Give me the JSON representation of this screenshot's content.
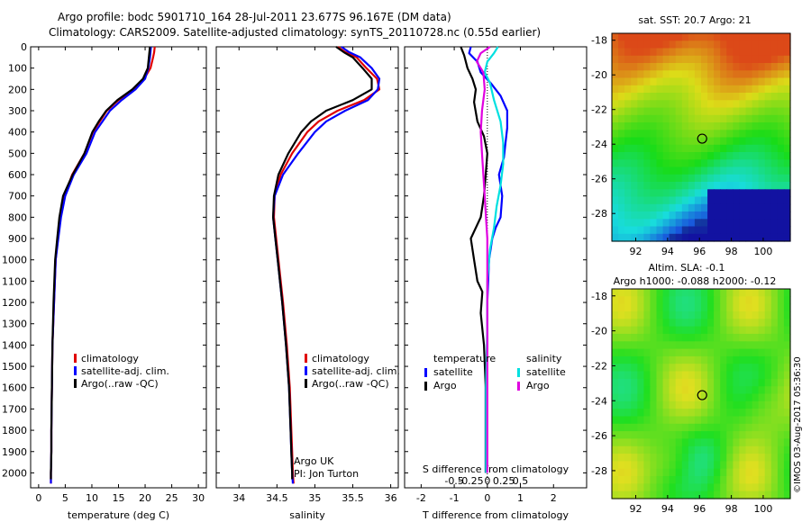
{
  "header": {
    "line1": "Argo profile: bodc 5901710_164 28-Jul-2011 23.677S 96.167E (DM data)",
    "line2": "Climatology: CARS2009. Satellite-adjusted climatology: synTS_20110728.nc (0.55d earlier)"
  },
  "credit": "©IMOS 03-Aug-2017 05:36:30",
  "colors": {
    "climatology": "#e00000",
    "satellite": "#0000ff",
    "argo": "#000000",
    "salinity_satellite": "#00e0e0",
    "salinity_argo": "#e000e0"
  },
  "depth_axis": {
    "ticks": [
      0,
      100,
      200,
      300,
      400,
      500,
      600,
      700,
      800,
      900,
      1000,
      1100,
      1200,
      1300,
      1400,
      1500,
      1600,
      1700,
      1800,
      1900,
      2000
    ],
    "range": [
      0,
      2070
    ],
    "reversed": true
  },
  "chart_data": [
    {
      "type": "line",
      "panel": "temperature",
      "xlabel": "temperature (deg C)",
      "xlim": [
        -1.5,
        31.5
      ],
      "xticks": [
        0,
        5,
        10,
        15,
        20,
        25,
        30
      ],
      "ylim": [
        0,
        2070
      ],
      "legend": [
        "climatology",
        "satellite-adj. clim.",
        "Argo(..raw -QC)"
      ],
      "series": [
        {
          "name": "climatology",
          "color": "#e00000",
          "x": [
            21.8,
            21.7,
            21.5,
            21.0,
            19.8,
            17.8,
            15.0,
            12.8,
            11.5,
            10.2,
            8.6,
            6.3,
            4.9,
            4.1,
            3.6,
            3.2,
            2.9,
            2.6,
            2.5,
            2.4,
            2.4,
            2.3,
            2.3
          ],
          "y": [
            0,
            25,
            50,
            100,
            150,
            200,
            250,
            300,
            350,
            400,
            500,
            600,
            700,
            800,
            900,
            1000,
            1200,
            1400,
            1600,
            1800,
            1900,
            2000,
            2050
          ]
        },
        {
          "name": "satellite-adj. clim.",
          "color": "#0000ff",
          "x": [
            21.1,
            21.0,
            20.9,
            20.6,
            20.0,
            18.2,
            15.6,
            13.4,
            12.0,
            10.6,
            9.0,
            6.6,
            5.0,
            4.2,
            3.7,
            3.2,
            2.9,
            2.6,
            2.5,
            2.4,
            2.4,
            2.3,
            2.3
          ],
          "y": [
            0,
            25,
            50,
            100,
            150,
            200,
            250,
            300,
            350,
            400,
            500,
            600,
            700,
            800,
            900,
            1000,
            1200,
            1400,
            1600,
            1800,
            1900,
            2000,
            2050
          ]
        },
        {
          "name": "Argo(..raw -QC)",
          "color": "#000000",
          "x": [
            20.9,
            20.8,
            20.7,
            20.5,
            19.6,
            17.6,
            14.8,
            12.7,
            11.3,
            10.1,
            8.6,
            6.4,
            4.6,
            3.9,
            3.5,
            3.1,
            2.8,
            2.6,
            2.5,
            2.4,
            2.4,
            2.3,
            2.3
          ],
          "y": [
            0,
            25,
            50,
            100,
            150,
            200,
            250,
            300,
            350,
            400,
            500,
            600,
            700,
            800,
            900,
            1000,
            1200,
            1400,
            1600,
            1800,
            1900,
            2000,
            2030
          ]
        }
      ]
    },
    {
      "type": "line",
      "panel": "salinity",
      "xlabel": "salinity",
      "xlim": [
        33.7,
        36.1
      ],
      "xticks": [
        34,
        34.5,
        35,
        35.5,
        36
      ],
      "ylim": [
        0,
        2070
      ],
      "legend": [
        "climatology",
        "satellite-adj. clim.",
        "Argo(..raw -QC)"
      ],
      "annotation": [
        "Argo UK",
        "PI: Jon Turton"
      ],
      "series": [
        {
          "name": "climatology",
          "color": "#e00000",
          "x": [
            35.3,
            35.4,
            35.55,
            35.68,
            35.82,
            35.85,
            35.65,
            35.3,
            35.05,
            34.9,
            34.7,
            34.55,
            34.47,
            34.46,
            34.49,
            34.52,
            34.58,
            34.63,
            34.67,
            34.69,
            34.7,
            34.71,
            34.72
          ],
          "y": [
            0,
            25,
            50,
            100,
            150,
            200,
            250,
            300,
            350,
            400,
            500,
            600,
            700,
            800,
            900,
            1000,
            1200,
            1400,
            1600,
            1800,
            1900,
            2000,
            2050
          ]
        },
        {
          "name": "satellite-adj. clim.",
          "color": "#0000ff",
          "x": [
            35.35,
            35.45,
            35.6,
            35.75,
            35.85,
            35.83,
            35.7,
            35.4,
            35.15,
            35.0,
            34.78,
            34.58,
            34.47,
            34.45,
            34.48,
            34.51,
            34.57,
            34.62,
            34.66,
            34.68,
            34.69,
            34.7,
            34.71
          ],
          "y": [
            0,
            25,
            50,
            100,
            150,
            200,
            250,
            300,
            350,
            400,
            500,
            600,
            700,
            800,
            900,
            1000,
            1200,
            1400,
            1600,
            1800,
            1900,
            2000,
            2050
          ]
        },
        {
          "name": "Argo(..raw -QC)",
          "color": "#000000",
          "x": [
            35.28,
            35.38,
            35.5,
            35.63,
            35.75,
            35.75,
            35.5,
            35.15,
            34.95,
            34.82,
            34.65,
            34.52,
            34.46,
            34.45,
            34.48,
            34.51,
            34.57,
            34.62,
            34.66,
            34.68,
            34.69,
            34.7,
            34.7
          ],
          "y": [
            0,
            25,
            50,
            100,
            150,
            200,
            250,
            300,
            350,
            400,
            500,
            600,
            700,
            800,
            900,
            1000,
            1200,
            1400,
            1600,
            1800,
            1900,
            2000,
            2030
          ]
        }
      ]
    },
    {
      "type": "line",
      "panel": "difference",
      "xlabel": "T difference from climatology",
      "xlabel_top": "S difference from climatology",
      "xlim": [
        -2.5,
        3.0
      ],
      "xticks": [
        -2,
        -1,
        0,
        1,
        2
      ],
      "xticks_s": [
        "-0.5",
        "-0.25",
        "0",
        "0.25",
        "0.5"
      ],
      "ylim": [
        0,
        2070
      ],
      "legend": {
        "temperature": [
          "satellite",
          "Argo"
        ],
        "salinity": [
          "satellite",
          "Argo"
        ]
      },
      "legend_headers": [
        "temperature",
        "salinity"
      ],
      "series": [
        {
          "name": "temperature satellite",
          "color": "#0000ff",
          "x": [
            -0.5,
            -0.55,
            -0.3,
            -0.2,
            0.1,
            0.4,
            0.6,
            0.6,
            0.55,
            0.5,
            0.35,
            0.45,
            0.4,
            0.25,
            0.15,
            0.05,
            0.0,
            0.0,
            -0.05,
            -0.05,
            -0.05
          ],
          "y": [
            0,
            30,
            70,
            120,
            170,
            230,
            300,
            380,
            450,
            520,
            600,
            700,
            800,
            850,
            900,
            1000,
            1200,
            1400,
            1600,
            1800,
            2000
          ]
        },
        {
          "name": "temperature Argo",
          "color": "#000000",
          "x": [
            -0.8,
            -0.7,
            -0.6,
            -0.45,
            -0.35,
            -0.4,
            -0.3,
            -0.1,
            0.0,
            -0.05,
            -0.1,
            -0.2,
            -0.5,
            -0.4,
            -0.3,
            -0.15,
            -0.2,
            -0.1,
            -0.05,
            -0.05,
            -0.05
          ],
          "y": [
            0,
            40,
            100,
            150,
            200,
            260,
            350,
            420,
            500,
            600,
            700,
            800,
            900,
            1000,
            1100,
            1150,
            1250,
            1400,
            1600,
            1800,
            2000
          ]
        },
        {
          "name": "salinity satellite",
          "color": "#00e0e0",
          "x": [
            0.08,
            0.05,
            0.0,
            -0.02,
            0.02,
            0.05,
            0.1,
            0.12,
            0.12,
            0.1,
            0.07,
            0.05,
            0.02,
            0.0,
            0.0,
            -0.01,
            -0.01
          ],
          "y": [
            0,
            30,
            70,
            120,
            170,
            250,
            350,
            450,
            550,
            650,
            750,
            850,
            950,
            1100,
            1300,
            1600,
            2000
          ]
        },
        {
          "name": "salinity Argo",
          "color": "#e000e0",
          "x": [
            0.02,
            -0.05,
            -0.08,
            -0.03,
            -0.02,
            -0.04,
            -0.05,
            -0.04,
            -0.03,
            -0.02,
            -0.01,
            0.0,
            0.0,
            0.0,
            0.0
          ],
          "y": [
            0,
            30,
            70,
            120,
            200,
            300,
            400,
            500,
            600,
            700,
            800,
            900,
            1000,
            1300,
            2000
          ]
        }
      ]
    },
    {
      "type": "heatmap",
      "panel": "sst_map",
      "title": "sat. SST: 20.7 Argo: 21",
      "xlim": [
        90.5,
        101.7
      ],
      "ylim": [
        -29.6,
        -17.6
      ],
      "xticks": [
        92,
        94,
        96,
        98,
        100
      ],
      "yticks": [
        -18,
        -20,
        -22,
        -24,
        -26,
        -28
      ],
      "marker": {
        "lon": 96.17,
        "lat": -23.68
      }
    },
    {
      "type": "heatmap",
      "panel": "sla_map",
      "title_lines": [
        "Altim. SLA: -0.1",
        "Argo h1000: -0.088 h2000: -0.12"
      ],
      "xlim": [
        90.5,
        101.7
      ],
      "ylim": [
        -29.6,
        -17.6
      ],
      "xticks": [
        92,
        94,
        96,
        98,
        100
      ],
      "yticks": [
        -18,
        -20,
        -22,
        -24,
        -26,
        -28
      ],
      "marker": {
        "lon": 96.17,
        "lat": -23.68
      }
    }
  ]
}
